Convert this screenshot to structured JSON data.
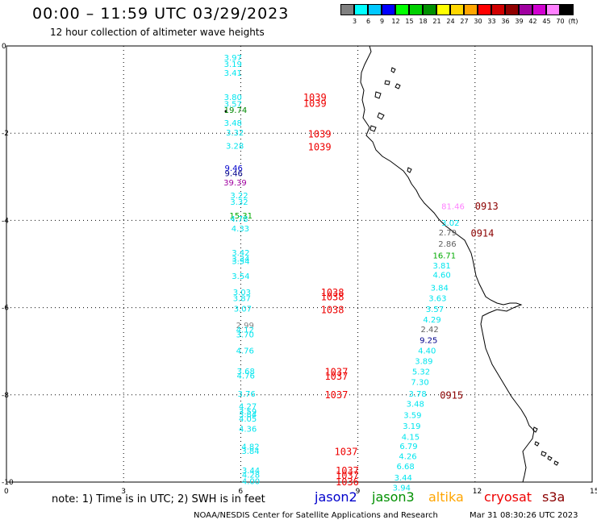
{
  "title": "00:00 – 11:59 UTC 03/29/2023",
  "subtitle": "12 hour collection of altimeter wave heights",
  "color_scale": {
    "unit": "(ft)",
    "bins": [
      {
        "label": "",
        "color": "#808080"
      },
      {
        "label": "3",
        "color": "#00ffff"
      },
      {
        "label": "6",
        "color": "#00c8ff"
      },
      {
        "label": "9",
        "color": "#0000ff"
      },
      {
        "label": "12",
        "color": "#00ff00"
      },
      {
        "label": "15",
        "color": "#00d000"
      },
      {
        "label": "18",
        "color": "#009000"
      },
      {
        "label": "21",
        "color": "#ffff00"
      },
      {
        "label": "24",
        "color": "#ffd700"
      },
      {
        "label": "27",
        "color": "#ffa500"
      },
      {
        "label": "30",
        "color": "#ff0000"
      },
      {
        "label": "33",
        "color": "#d00000"
      },
      {
        "label": "36",
        "color": "#900000"
      },
      {
        "label": "39",
        "color": "#a000a0"
      },
      {
        "label": "42",
        "color": "#d000d0"
      },
      {
        "label": "45",
        "color": "#ff80ff"
      },
      {
        "label": "70",
        "color": "#000000"
      }
    ]
  },
  "axes": {
    "x_ticks": [
      "0",
      "3",
      "6",
      "9",
      "12",
      "15"
    ],
    "y_ticks": [
      "0",
      "-2",
      "-4",
      "-6",
      "-8",
      "-10"
    ]
  },
  "swh_labels": [
    {
      "text": "3.97",
      "x": 5.57,
      "y": -0.26,
      "color": "#00e5ee"
    },
    {
      "text": "3.19",
      "x": 5.57,
      "y": -0.41,
      "color": "#00e5ee"
    },
    {
      "text": "3.41",
      "x": 5.57,
      "y": -0.61,
      "color": "#00e5ee"
    },
    {
      "text": "3.80",
      "x": 5.57,
      "y": -1.16,
      "color": "#00e5ee"
    },
    {
      "text": "3.57",
      "x": 5.57,
      "y": -1.32,
      "color": "#00e5ee"
    },
    {
      "text": "19.74",
      "x": 5.57,
      "y": -1.46,
      "color": "#008800"
    },
    {
      "text": "3.48",
      "x": 5.57,
      "y": -1.76,
      "color": "#00e5ee"
    },
    {
      "text": "3.32",
      "x": 5.62,
      "y": -1.98,
      "color": "#00e5ee"
    },
    {
      "text": "3.28",
      "x": 5.62,
      "y": -2.28,
      "color": "#00e5ee"
    },
    {
      "text": "9.46",
      "x": 5.59,
      "y": -2.79,
      "color": "#0000cc"
    },
    {
      "text": "9.46",
      "x": 5.59,
      "y": -2.91,
      "color": "#00008b"
    },
    {
      "text": "39.39",
      "x": 5.56,
      "y": -3.12,
      "color": "#a000a0"
    },
    {
      "text": "3.22",
      "x": 5.73,
      "y": -3.42,
      "color": "#00e5ee"
    },
    {
      "text": "3.32",
      "x": 5.73,
      "y": -3.57,
      "color": "#00e5ee"
    },
    {
      "text": "15.31",
      "x": 5.71,
      "y": -3.88,
      "color": "#00aa00"
    },
    {
      "text": "4.78",
      "x": 5.73,
      "y": -3.96,
      "color": "#00e5ee"
    },
    {
      "text": "4.33",
      "x": 5.76,
      "y": -4.18,
      "color": "#00e5ee"
    },
    {
      "text": "3.42",
      "x": 5.77,
      "y": -4.73,
      "color": "#00e5ee"
    },
    {
      "text": "3.34",
      "x": 5.77,
      "y": -4.87,
      "color": "#00e5ee"
    },
    {
      "text": "3.54",
      "x": 5.77,
      "y": -4.93,
      "color": "#00e5ee"
    },
    {
      "text": "3.54",
      "x": 5.77,
      "y": -5.27,
      "color": "#00e5ee"
    },
    {
      "text": "3.03",
      "x": 5.8,
      "y": -5.64,
      "color": "#00e5ee"
    },
    {
      "text": "3.87",
      "x": 5.8,
      "y": -5.78,
      "color": "#00e5ee"
    },
    {
      "text": "3.07",
      "x": 5.82,
      "y": -6.02,
      "color": "#00e5ee"
    },
    {
      "text": "2.99",
      "x": 5.88,
      "y": -6.4,
      "color": "#808080"
    },
    {
      "text": "4.12",
      "x": 5.88,
      "y": -6.5,
      "color": "#00e5ee"
    },
    {
      "text": "3.70",
      "x": 5.88,
      "y": -6.61,
      "color": "#00e5ee"
    },
    {
      "text": "4.76",
      "x": 5.88,
      "y": -6.98,
      "color": "#00e5ee"
    },
    {
      "text": "3.68",
      "x": 5.9,
      "y": -7.45,
      "color": "#00e5ee"
    },
    {
      "text": "4.76",
      "x": 5.9,
      "y": -7.55,
      "color": "#00e5ee"
    },
    {
      "text": "3.76",
      "x": 5.92,
      "y": -7.97,
      "color": "#00e5ee"
    },
    {
      "text": "4.27",
      "x": 5.95,
      "y": -8.25,
      "color": "#00e5ee"
    },
    {
      "text": "3.59",
      "x": 5.95,
      "y": -8.37,
      "color": "#00e5ee"
    },
    {
      "text": "3.84",
      "x": 5.95,
      "y": -8.44,
      "color": "#00e5ee"
    },
    {
      "text": "4.05",
      "x": 5.95,
      "y": -8.54,
      "color": "#00e5ee"
    },
    {
      "text": "4.36",
      "x": 5.95,
      "y": -8.77,
      "color": "#00e5ee"
    },
    {
      "text": "4.82",
      "x": 6.02,
      "y": -9.18,
      "color": "#00e5ee"
    },
    {
      "text": "3.84",
      "x": 6.02,
      "y": -9.28,
      "color": "#00e5ee"
    },
    {
      "text": "3.44",
      "x": 6.03,
      "y": -9.72,
      "color": "#00e5ee"
    },
    {
      "text": "4.28",
      "x": 6.03,
      "y": -9.82,
      "color": "#00e5ee"
    },
    {
      "text": "4.00",
      "x": 6.03,
      "y": -9.97,
      "color": "#00e5ee"
    },
    {
      "text": "81.46",
      "x": 11.14,
      "y": -3.67,
      "color": "#ff80ff"
    },
    {
      "text": "3.02",
      "x": 11.14,
      "y": -4.05,
      "color": "#00e5ee"
    },
    {
      "text": "2.79",
      "x": 11.07,
      "y": -4.27,
      "color": "#606060"
    },
    {
      "text": "2.86",
      "x": 11.06,
      "y": -4.53,
      "color": "#606060"
    },
    {
      "text": "16.71",
      "x": 10.92,
      "y": -4.8,
      "color": "#00aa00"
    },
    {
      "text": "3.81",
      "x": 10.92,
      "y": -5.03,
      "color": "#00e5ee"
    },
    {
      "text": "4.60",
      "x": 10.92,
      "y": -5.24,
      "color": "#00e5ee"
    },
    {
      "text": "3.84",
      "x": 10.86,
      "y": -5.54,
      "color": "#00e5ee"
    },
    {
      "text": "3.63",
      "x": 10.81,
      "y": -5.78,
      "color": "#00e5ee"
    },
    {
      "text": "3.57",
      "x": 10.74,
      "y": -6.03,
      "color": "#00e5ee"
    },
    {
      "text": "4.29",
      "x": 10.67,
      "y": -6.27,
      "color": "#00e5ee"
    },
    {
      "text": "2.42",
      "x": 10.61,
      "y": -6.49,
      "color": "#606060"
    },
    {
      "text": "9.25",
      "x": 10.58,
      "y": -6.74,
      "color": "#00008b"
    },
    {
      "text": "4.40",
      "x": 10.54,
      "y": -6.98,
      "color": "#00e5ee"
    },
    {
      "text": "3.89",
      "x": 10.46,
      "y": -7.22,
      "color": "#00e5ee"
    },
    {
      "text": "5.32",
      "x": 10.39,
      "y": -7.46,
      "color": "#00e5ee"
    },
    {
      "text": "7.30",
      "x": 10.36,
      "y": -7.7,
      "color": "#00e5ee"
    },
    {
      "text": "3.78",
      "x": 10.3,
      "y": -7.97,
      "color": "#00e5ee"
    },
    {
      "text": "3.48",
      "x": 10.24,
      "y": -8.2,
      "color": "#00e5ee"
    },
    {
      "text": "3.59",
      "x": 10.17,
      "y": -8.46,
      "color": "#00e5ee"
    },
    {
      "text": "3.19",
      "x": 10.15,
      "y": -8.71,
      "color": "#00e5ee"
    },
    {
      "text": "4.15",
      "x": 10.12,
      "y": -8.96,
      "color": "#00e5ee"
    },
    {
      "text": "6.79",
      "x": 10.07,
      "y": -9.17,
      "color": "#00e5ee"
    },
    {
      "text": "4.26",
      "x": 10.05,
      "y": -9.4,
      "color": "#00e5ee"
    },
    {
      "text": "6.68",
      "x": 9.99,
      "y": -9.63,
      "color": "#00e5ee"
    },
    {
      "text": "3.44",
      "x": 9.93,
      "y": -9.89,
      "color": "#00e5ee"
    },
    {
      "text": "3.94",
      "x": 9.89,
      "y": -10.12,
      "color": "#00e5ee"
    }
  ],
  "time_labels": [
    {
      "text": "1039",
      "x": 7.6,
      "y": -1.18,
      "color": "#ee0000"
    },
    {
      "text": "1039",
      "x": 7.6,
      "y": -1.32,
      "color": "#ee0000"
    },
    {
      "text": "1039",
      "x": 7.72,
      "y": -2.02,
      "color": "#ee0000"
    },
    {
      "text": "1039",
      "x": 7.72,
      "y": -2.32,
      "color": "#ee0000"
    },
    {
      "text": "1038",
      "x": 8.05,
      "y": -5.66,
      "color": "#ee0000"
    },
    {
      "text": "1038",
      "x": 8.05,
      "y": -5.76,
      "color": "#ee0000"
    },
    {
      "text": "1038",
      "x": 8.05,
      "y": -6.05,
      "color": "#ee0000"
    },
    {
      "text": "1037",
      "x": 8.15,
      "y": -7.48,
      "color": "#ee0000"
    },
    {
      "text": "1037",
      "x": 8.15,
      "y": -7.58,
      "color": "#ee0000"
    },
    {
      "text": "1037",
      "x": 8.15,
      "y": -8.0,
      "color": "#ee0000"
    },
    {
      "text": "1037",
      "x": 8.4,
      "y": -9.31,
      "color": "#ee0000"
    },
    {
      "text": "1037",
      "x": 8.43,
      "y": -9.74,
      "color": "#ee0000"
    },
    {
      "text": "1037",
      "x": 8.43,
      "y": -9.85,
      "color": "#ee0000"
    },
    {
      "text": "1036",
      "x": 8.43,
      "y": -10.0,
      "color": "#ee0000"
    },
    {
      "text": "0913",
      "x": 12.0,
      "y": -3.68,
      "color": "#8b0000"
    },
    {
      "text": "0914",
      "x": 11.89,
      "y": -4.3,
      "color": "#8b0000"
    },
    {
      "text": "0915",
      "x": 11.1,
      "y": -8.01,
      "color": "#8b0000"
    }
  ],
  "note": "note: 1) Time is in UTC; 2) SWH is in feet",
  "legend": [
    {
      "name": "jason2",
      "color": "#0000cc"
    },
    {
      "name": "jason3",
      "color": "#009000"
    },
    {
      "name": "altika",
      "color": "#ffa500"
    },
    {
      "name": "cryosat",
      "color": "#ee0000"
    },
    {
      "name": "s3a",
      "color": "#8b0000"
    }
  ],
  "footer": "NOAA/NESDIS Center for Satellite Applications and Research",
  "timestamp": "Mar 31 08:30:26 UTC 2023"
}
